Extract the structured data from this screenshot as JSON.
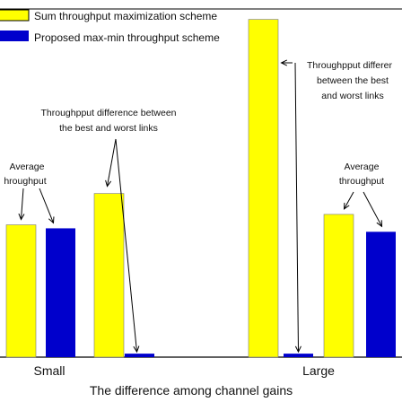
{
  "chart_data": {
    "type": "bar",
    "xlabel": "The difference among channel gains",
    "ylabel": "",
    "ylim": [
      0,
      100
    ],
    "grid": false,
    "legend_placement": "top-left",
    "groups": [
      {
        "label": "Small",
        "bars": [
          {
            "series": "Sum throughput maximization scheme",
            "metric": "Average throughput",
            "value": 38
          },
          {
            "series": "Proposed max-min throughput scheme",
            "metric": "Average throughput",
            "value": 37
          },
          {
            "series": "Sum throughput maximization scheme",
            "metric": "Throughpput difference between the best and worst links",
            "value": 47
          },
          {
            "series": "Proposed max-min throughput scheme",
            "metric": "Throughpput difference between the best and worst links",
            "value": 1
          }
        ]
      },
      {
        "label": "Large",
        "bars": [
          {
            "series": "Sum throughput maximization scheme",
            "metric": "Throughpput difference between the best and worst links",
            "value": 97
          },
          {
            "series": "Proposed max-min throughput scheme",
            "metric": "Throughpput difference between the best and worst links",
            "value": 1
          },
          {
            "series": "Sum throughput maximization scheme",
            "metric": "Average throughput",
            "value": 41
          },
          {
            "series": "Proposed max-min throughput scheme",
            "metric": "Average throughput",
            "value": 36
          }
        ]
      }
    ],
    "series": [
      {
        "name": "Sum throughput maximization scheme",
        "color": "#ffff00"
      },
      {
        "name": "Proposed max-min throughput scheme",
        "color": "#0000cc"
      }
    ],
    "annotations": {
      "small_average": [
        "Average",
        "hroughput"
      ],
      "small_difference": [
        "Throughpput difference between",
        "the best and worst links"
      ],
      "large_difference": [
        "Throughpput differer",
        "between the best",
        "and worst links"
      ],
      "large_average": [
        "Average",
        "throughput"
      ]
    }
  }
}
